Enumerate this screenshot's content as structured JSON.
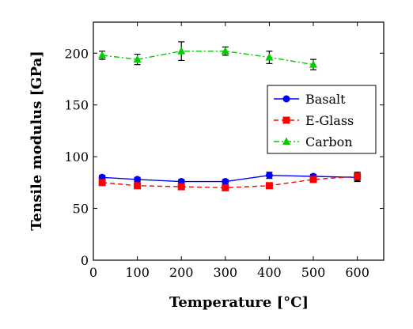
{
  "chart_data": {
    "type": "line",
    "xlabel": "Temperature [°C]",
    "ylabel": "Tensile modulus [GPa]",
    "xlim": [
      0,
      660
    ],
    "ylim": [
      0,
      230
    ],
    "xticks": [
      0,
      100,
      200,
      300,
      400,
      500,
      600
    ],
    "yticks": [
      0,
      50,
      100,
      150,
      200
    ],
    "grid": false,
    "legend_position": "right",
    "series": [
      {
        "name": "Basalt",
        "color": "#0000ff",
        "marker": "circle",
        "line": "solid",
        "points": [
          {
            "x": 20,
            "y": 80,
            "err": 2
          },
          {
            "x": 100,
            "y": 78,
            "err": 2
          },
          {
            "x": 200,
            "y": 76,
            "err": 2
          },
          {
            "x": 300,
            "y": 76,
            "err": 2
          },
          {
            "x": 400,
            "y": 82,
            "err": 3
          },
          {
            "x": 500,
            "y": 81,
            "err": 2
          },
          {
            "x": 600,
            "y": 80,
            "err": 4
          }
        ]
      },
      {
        "name": "E-Glass",
        "color": "#ff0000",
        "marker": "square",
        "line": "dashed",
        "points": [
          {
            "x": 20,
            "y": 75,
            "err": 2
          },
          {
            "x": 100,
            "y": 72,
            "err": 2
          },
          {
            "x": 200,
            "y": 71,
            "err": 2
          },
          {
            "x": 300,
            "y": 70,
            "err": 2
          },
          {
            "x": 400,
            "y": 72,
            "err": 2
          },
          {
            "x": 500,
            "y": 78,
            "err": 2
          },
          {
            "x": 600,
            "y": 81,
            "err": 4
          }
        ]
      },
      {
        "name": "Carbon",
        "color": "#00cc00",
        "marker": "triangle",
        "line": "dashdot",
        "points": [
          {
            "x": 20,
            "y": 198,
            "err": 4
          },
          {
            "x": 100,
            "y": 194,
            "err": 5
          },
          {
            "x": 200,
            "y": 202,
            "err": 9
          },
          {
            "x": 300,
            "y": 202,
            "err": 4
          },
          {
            "x": 400,
            "y": 196,
            "err": 6
          },
          {
            "x": 500,
            "y": 189,
            "err": 5
          }
        ]
      }
    ]
  }
}
